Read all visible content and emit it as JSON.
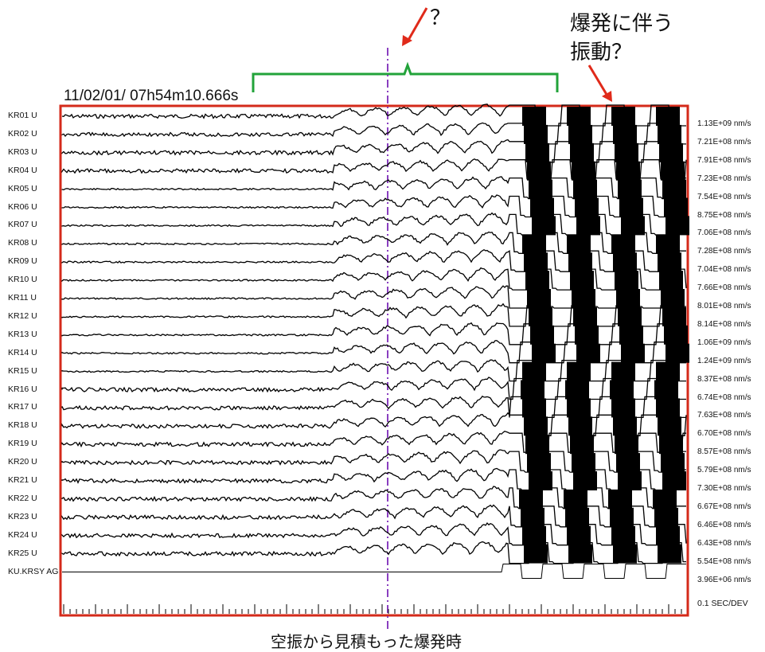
{
  "header": {
    "timestamp": "11/02/01/ 07h54m10.666s",
    "question_top": "？",
    "annotation_explosion_line1": "爆発に伴う",
    "annotation_explosion_line2": "振動？",
    "caption": "空振から見積もった爆発時",
    "time_scale": "0.1 SEC/DEV"
  },
  "colors": {
    "frame": "#d42a1a",
    "bracket": "#22a33a",
    "arrow": "#e02a1a",
    "onset_line": "#8a3fc0",
    "trace": "#000000"
  },
  "chart_data": {
    "type": "seismogram",
    "component": "U",
    "channels": [
      {
        "name": "KR01",
        "comp": "U",
        "scale": "1.13E+09 nm/s"
      },
      {
        "name": "KR02",
        "comp": "U",
        "scale": "7.21E+08 nm/s"
      },
      {
        "name": "KR03",
        "comp": "U",
        "scale": "7.91E+08 nm/s"
      },
      {
        "name": "KR04",
        "comp": "U",
        "scale": "7.23E+08 nm/s"
      },
      {
        "name": "KR05",
        "comp": "U",
        "scale": "7.54E+08 nm/s"
      },
      {
        "name": "KR06",
        "comp": "U",
        "scale": "8.75E+08 nm/s"
      },
      {
        "name": "KR07",
        "comp": "U",
        "scale": "7.06E+08 nm/s"
      },
      {
        "name": "KR08",
        "comp": "U",
        "scale": "7.28E+08 nm/s"
      },
      {
        "name": "KR09",
        "comp": "U",
        "scale": "7.04E+08 nm/s"
      },
      {
        "name": "KR10",
        "comp": "U",
        "scale": "7.66E+08 nm/s"
      },
      {
        "name": "KR11",
        "comp": "U",
        "scale": "8.01E+08 nm/s"
      },
      {
        "name": "KR12",
        "comp": "U",
        "scale": "8.14E+08 nm/s"
      },
      {
        "name": "KR13",
        "comp": "U",
        "scale": "1.06E+09 nm/s"
      },
      {
        "name": "KR14",
        "comp": "U",
        "scale": "1.24E+09 nm/s"
      },
      {
        "name": "KR15",
        "comp": "U",
        "scale": "8.37E+08 nm/s"
      },
      {
        "name": "KR16",
        "comp": "U",
        "scale": "6.74E+08 nm/s"
      },
      {
        "name": "KR17",
        "comp": "U",
        "scale": "7.63E+08 nm/s"
      },
      {
        "name": "KR18",
        "comp": "U",
        "scale": "6.70E+08 nm/s"
      },
      {
        "name": "KR19",
        "comp": "U",
        "scale": "8.57E+08 nm/s"
      },
      {
        "name": "KR20",
        "comp": "U",
        "scale": "5.79E+08 nm/s"
      },
      {
        "name": "KR21",
        "comp": "U",
        "scale": "7.30E+08 nm/s"
      },
      {
        "name": "KR22",
        "comp": "U",
        "scale": "6.67E+08 nm/s"
      },
      {
        "name": "KR23",
        "comp": "U",
        "scale": "6.46E+08 nm/s"
      },
      {
        "name": "KR24",
        "comp": "U",
        "scale": "6.43E+08 nm/s"
      },
      {
        "name": "KR25",
        "comp": "U",
        "scale": "5.54E+08 nm/s"
      },
      {
        "name": "KU.KRSY AG",
        "comp": "",
        "scale": "3.96E+06 nm/s"
      }
    ]
  }
}
